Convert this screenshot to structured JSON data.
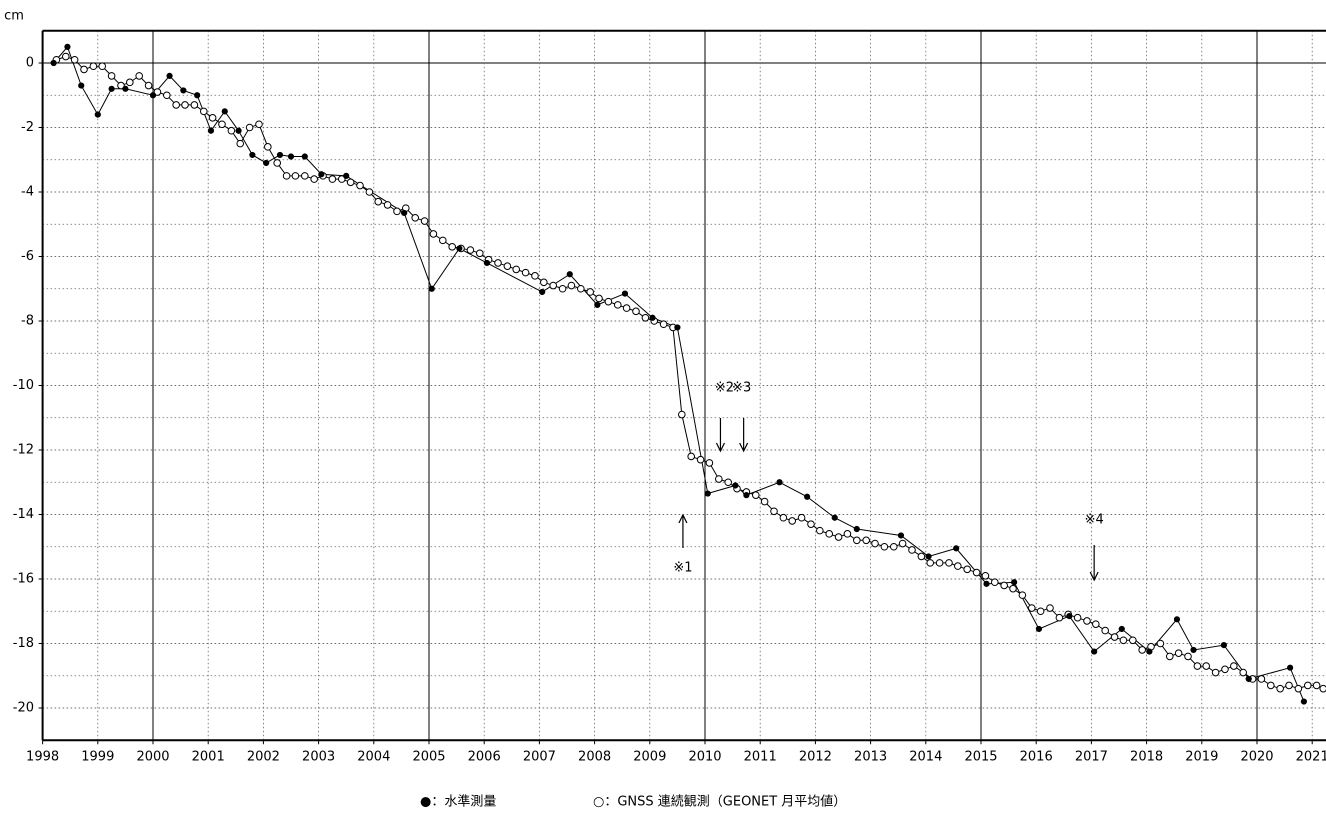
{
  "chart_data": {
    "type": "line",
    "y_label": "cm",
    "xlim": [
      1998,
      2021.25
    ],
    "xticks": [
      1998,
      1999,
      2000,
      2001,
      2002,
      2003,
      2004,
      2005,
      2006,
      2007,
      2008,
      2009,
      2010,
      2011,
      2012,
      2013,
      2014,
      2015,
      2016,
      2017,
      2018,
      2019,
      2020,
      2021
    ],
    "ylim": [
      -21,
      1
    ],
    "yticks": [
      0,
      -2,
      -4,
      -6,
      -8,
      -10,
      -12,
      -14,
      -16,
      -18,
      -20
    ],
    "grid": true,
    "series": [
      {
        "name": "●：水準測量",
        "color": "#000000",
        "marker": "filled",
        "x": [
          1998.2,
          1998.45,
          1998.7,
          1999.0,
          1999.25,
          1999.5,
          2000.0,
          2000.3,
          2000.55,
          2000.8,
          2001.05,
          2001.3,
          2001.55,
          2001.8,
          2002.05,
          2002.3,
          2002.5,
          2002.75,
          2003.05,
          2003.5,
          2004.55,
          2005.05,
          2005.55,
          2006.05,
          2007.05,
          2007.55,
          2008.05,
          2008.55,
          2009.05,
          2009.5,
          2010.05,
          2010.55,
          2010.75,
          2011.35,
          2011.85,
          2012.35,
          2012.75,
          2013.55,
          2014.05,
          2014.55,
          2015.1,
          2015.6,
          2016.05,
          2016.6,
          2017.05,
          2017.55,
          2018.05,
          2018.55,
          2018.85,
          2019.4,
          2019.85,
          2020.6,
          2020.85
        ],
        "values": [
          0,
          0.5,
          -0.7,
          -1.6,
          -0.8,
          -0.8,
          -1.0,
          -0.4,
          -0.85,
          -1.0,
          -2.1,
          -1.5,
          -2.1,
          -2.85,
          -3.1,
          -2.85,
          -2.9,
          -2.9,
          -3.45,
          -3.5,
          -4.65,
          -7.0,
          -5.75,
          -6.2,
          -7.1,
          -6.55,
          -7.5,
          -7.15,
          -7.9,
          -8.2,
          -13.35,
          -13.1,
          -13.4,
          -13.0,
          -13.45,
          -14.1,
          -14.45,
          -14.65,
          -15.3,
          -15.05,
          -16.15,
          -16.1,
          -17.55,
          -17.15,
          -18.25,
          -17.55,
          -18.25,
          -17.25,
          -18.2,
          -18.05,
          -19.1,
          -18.75,
          -19.8
        ]
      },
      {
        "name": "○：GNSS 連続観測（GEONET 月平均値）",
        "color": "#000000",
        "marker": "open",
        "x": [
          1998.25,
          1998.42,
          1998.58,
          1998.75,
          1998.92,
          1999.08,
          1999.25,
          1999.42,
          1999.58,
          1999.75,
          1999.92,
          2000.08,
          2000.25,
          2000.42,
          2000.58,
          2000.75,
          2000.92,
          2001.08,
          2001.25,
          2001.42,
          2001.58,
          2001.75,
          2001.92,
          2002.08,
          2002.25,
          2002.42,
          2002.58,
          2002.75,
          2002.92,
          2003.08,
          2003.25,
          2003.42,
          2003.58,
          2003.75,
          2003.92,
          2004.08,
          2004.25,
          2004.42,
          2004.58,
          2004.75,
          2004.92,
          2005.08,
          2005.25,
          2005.42,
          2005.58,
          2005.75,
          2005.92,
          2006.08,
          2006.25,
          2006.42,
          2006.58,
          2006.75,
          2006.92,
          2007.08,
          2007.25,
          2007.42,
          2007.58,
          2007.75,
          2007.92,
          2008.08,
          2008.25,
          2008.42,
          2008.58,
          2008.75,
          2008.92,
          2009.08,
          2009.25,
          2009.42,
          2009.58,
          2009.75,
          2009.92,
          2010.08,
          2010.25,
          2010.42,
          2010.58,
          2010.75,
          2010.92,
          2011.08,
          2011.25,
          2011.42,
          2011.58,
          2011.75,
          2011.92,
          2012.08,
          2012.25,
          2012.42,
          2012.58,
          2012.75,
          2012.92,
          2013.08,
          2013.25,
          2013.42,
          2013.58,
          2013.75,
          2013.92,
          2014.08,
          2014.25,
          2014.42,
          2014.58,
          2014.75,
          2014.92,
          2015.08,
          2015.25,
          2015.42,
          2015.58,
          2015.75,
          2015.92,
          2016.08,
          2016.25,
          2016.42,
          2016.58,
          2016.75,
          2016.92,
          2017.08,
          2017.25,
          2017.42,
          2017.58,
          2017.75,
          2017.92,
          2018.08,
          2018.25,
          2018.42,
          2018.58,
          2018.75,
          2018.92,
          2019.08,
          2019.25,
          2019.42,
          2019.58,
          2019.75,
          2019.92,
          2020.08,
          2020.25,
          2020.42,
          2020.58,
          2020.75,
          2020.92,
          2021.08,
          2021.2
        ],
        "values": [
          0.1,
          0.2,
          0.1,
          -0.2,
          -0.1,
          -0.1,
          -0.4,
          -0.7,
          -0.6,
          -0.4,
          -0.7,
          -0.9,
          -1.0,
          -1.3,
          -1.3,
          -1.3,
          -1.5,
          -1.7,
          -1.9,
          -2.1,
          -2.5,
          -2.0,
          -1.9,
          -2.6,
          -3.1,
          -3.5,
          -3.5,
          -3.5,
          -3.6,
          -3.5,
          -3.6,
          -3.6,
          -3.7,
          -3.8,
          -4.0,
          -4.3,
          -4.4,
          -4.6,
          -4.5,
          -4.8,
          -4.9,
          -5.3,
          -5.5,
          -5.7,
          -5.75,
          -5.8,
          -5.9,
          -6.1,
          -6.2,
          -6.3,
          -6.4,
          -6.5,
          -6.6,
          -6.8,
          -6.9,
          -7.0,
          -6.9,
          -7.0,
          -7.1,
          -7.3,
          -7.4,
          -7.5,
          -7.6,
          -7.7,
          -7.9,
          -8.0,
          -8.1,
          -8.2,
          -10.9,
          -12.2,
          -12.3,
          -12.4,
          -12.9,
          -13.0,
          -13.2,
          -13.3,
          -13.4,
          -13.6,
          -13.9,
          -14.1,
          -14.2,
          -14.1,
          -14.3,
          -14.5,
          -14.6,
          -14.7,
          -14.6,
          -14.8,
          -14.8,
          -14.9,
          -15.0,
          -15.0,
          -14.9,
          -15.1,
          -15.3,
          -15.5,
          -15.5,
          -15.5,
          -15.6,
          -15.7,
          -15.8,
          -15.9,
          -16.1,
          -16.2,
          -16.3,
          -16.5,
          -16.9,
          -17.0,
          -16.9,
          -17.2,
          -17.1,
          -17.2,
          -17.3,
          -17.4,
          -17.6,
          -17.8,
          -17.9,
          -17.9,
          -18.2,
          -18.1,
          -18.0,
          -18.4,
          -18.3,
          -18.4,
          -18.7,
          -18.7,
          -18.9,
          -18.8,
          -18.7,
          -18.9,
          -19.1,
          -19.1,
          -19.3,
          -19.4,
          -19.3,
          -19.4,
          -19.3,
          -19.3,
          -19.4
        ]
      }
    ],
    "annotations": [
      {
        "text": "※1",
        "x": 2009.6
      },
      {
        "text": "※2",
        "x": 2010.28
      },
      {
        "text": "※3",
        "x": 2010.7
      },
      {
        "text": "※4",
        "x": 2017.05
      }
    ]
  }
}
